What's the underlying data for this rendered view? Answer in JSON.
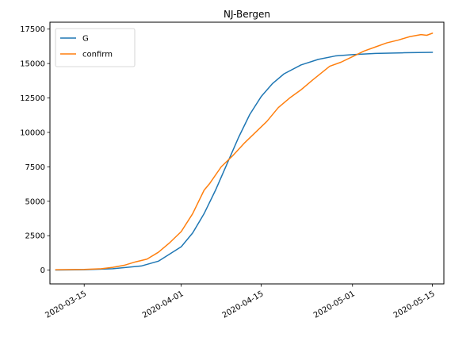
{
  "chart_data": {
    "type": "line",
    "title": "NJ-Bergen",
    "xlabel": "",
    "ylabel": "",
    "x_axis": {
      "type": "date",
      "range": [
        "2020-03-09",
        "2020-05-17"
      ],
      "ticks": [
        "2020-03-15",
        "2020-04-01",
        "2020-04-15",
        "2020-05-01",
        "2020-05-15"
      ]
    },
    "y_axis": {
      "range": [
        -1000,
        18000
      ],
      "ticks": [
        0,
        2500,
        5000,
        7500,
        10000,
        12500,
        15000,
        17500
      ]
    },
    "legend": {
      "position": "top-left"
    },
    "grid": false,
    "series": [
      {
        "name": "G",
        "color": "#1f77b4",
        "points": [
          [
            "2020-03-10",
            5
          ],
          [
            "2020-03-15",
            30
          ],
          [
            "2020-03-20",
            100
          ],
          [
            "2020-03-25",
            300
          ],
          [
            "2020-03-28",
            650
          ],
          [
            "2020-04-01",
            1700
          ],
          [
            "2020-04-03",
            2700
          ],
          [
            "2020-04-05",
            4100
          ],
          [
            "2020-04-07",
            5800
          ],
          [
            "2020-04-09",
            7700
          ],
          [
            "2020-04-11",
            9600
          ],
          [
            "2020-04-13",
            11300
          ],
          [
            "2020-04-15",
            12600
          ],
          [
            "2020-04-17",
            13550
          ],
          [
            "2020-04-19",
            14250
          ],
          [
            "2020-04-22",
            14900
          ],
          [
            "2020-04-25",
            15300
          ],
          [
            "2020-04-28",
            15550
          ],
          [
            "2020-05-01",
            15650
          ],
          [
            "2020-05-05",
            15730
          ],
          [
            "2020-05-10",
            15780
          ],
          [
            "2020-05-15",
            15810
          ]
        ]
      },
      {
        "name": "confirm",
        "color": "#ff7f0e",
        "points": [
          [
            "2020-03-10",
            30
          ],
          [
            "2020-03-15",
            50
          ],
          [
            "2020-03-18",
            100
          ],
          [
            "2020-03-20",
            200
          ],
          [
            "2020-03-22",
            350
          ],
          [
            "2020-03-24",
            600
          ],
          [
            "2020-03-26",
            800
          ],
          [
            "2020-03-28",
            1300
          ],
          [
            "2020-03-30",
            2000
          ],
          [
            "2020-04-01",
            2800
          ],
          [
            "2020-04-03",
            4100
          ],
          [
            "2020-04-05",
            5800
          ],
          [
            "2020-04-06",
            6300
          ],
          [
            "2020-04-08",
            7500
          ],
          [
            "2020-04-10",
            8300
          ],
          [
            "2020-04-12",
            9200
          ],
          [
            "2020-04-14",
            10000
          ],
          [
            "2020-04-16",
            10800
          ],
          [
            "2020-04-18",
            11800
          ],
          [
            "2020-04-20",
            12500
          ],
          [
            "2020-04-22",
            13100
          ],
          [
            "2020-04-24",
            13800
          ],
          [
            "2020-04-27",
            14800
          ],
          [
            "2020-04-29",
            15100
          ],
          [
            "2020-05-01",
            15500
          ],
          [
            "2020-05-03",
            15900
          ],
          [
            "2020-05-05",
            16200
          ],
          [
            "2020-05-07",
            16500
          ],
          [
            "2020-05-09",
            16700
          ],
          [
            "2020-05-11",
            16950
          ],
          [
            "2020-05-13",
            17100
          ],
          [
            "2020-05-14",
            17050
          ],
          [
            "2020-05-15",
            17200
          ]
        ]
      }
    ]
  }
}
